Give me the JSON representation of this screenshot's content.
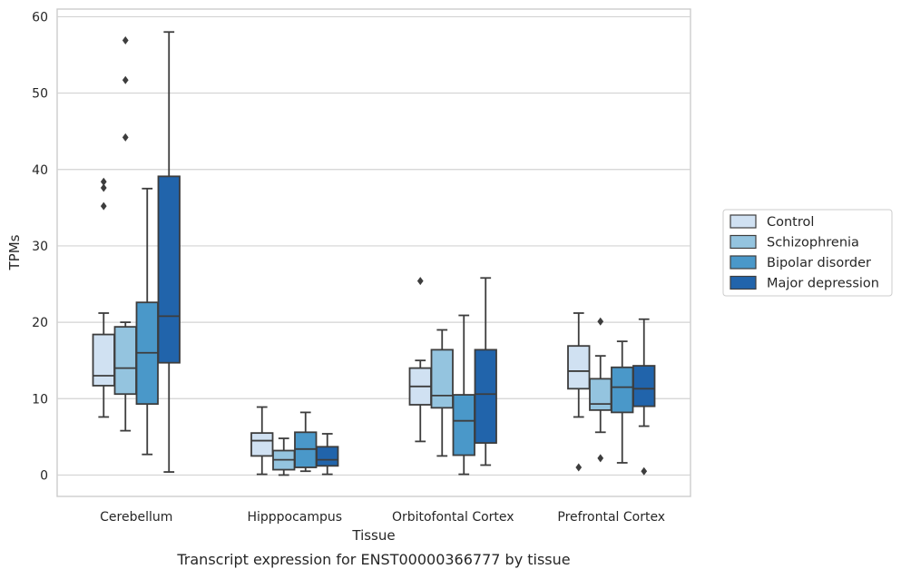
{
  "chart_data": {
    "type": "box",
    "title": "",
    "caption": "Transcript expression for ENST00000366777 by tissue",
    "xlabel": "Tissue",
    "ylabel": "TPMs",
    "ylim": [
      -2.8,
      61
    ],
    "yticks": [
      0,
      10,
      20,
      30,
      40,
      50,
      60
    ],
    "grid": "horizontal",
    "legend_position": "right",
    "categories": [
      "Cerebellum",
      "Hipppocampus",
      "Orbitofontal Cortex",
      "Prefrontal Cortex"
    ],
    "series": [
      {
        "name": "Control",
        "color": "#d0e1f2",
        "boxes": [
          {
            "whislo": 7.6,
            "q1": 11.7,
            "med": 13.0,
            "q3": 18.4,
            "whishi": 21.2,
            "fliers": [
              35.2,
              37.6,
              38.4
            ]
          },
          {
            "whislo": 0.1,
            "q1": 2.5,
            "med": 4.5,
            "q3": 5.5,
            "whishi": 8.9,
            "fliers": []
          },
          {
            "whislo": 4.4,
            "q1": 9.2,
            "med": 11.6,
            "q3": 14.0,
            "whishi": 15.0,
            "fliers": [
              25.4
            ]
          },
          {
            "whislo": 7.6,
            "q1": 11.3,
            "med": 13.6,
            "q3": 16.9,
            "whishi": 21.2,
            "fliers": [
              1.0
            ]
          }
        ]
      },
      {
        "name": "Schizophrenia",
        "color": "#94c4df",
        "boxes": [
          {
            "whislo": 5.8,
            "q1": 10.6,
            "med": 14.0,
            "q3": 19.4,
            "whishi": 20.0,
            "fliers": [
              44.2,
              51.7,
              56.9
            ]
          },
          {
            "whislo": 0.0,
            "q1": 0.7,
            "med": 2.0,
            "q3": 3.2,
            "whishi": 4.8,
            "fliers": []
          },
          {
            "whislo": 2.5,
            "q1": 8.8,
            "med": 10.4,
            "q3": 16.4,
            "whishi": 19.0,
            "fliers": []
          },
          {
            "whislo": 5.6,
            "q1": 8.5,
            "med": 9.3,
            "q3": 12.6,
            "whishi": 15.6,
            "fliers": [
              2.2,
              20.1
            ]
          }
        ]
      },
      {
        "name": "Bipolar disorder",
        "color": "#4a98c9",
        "boxes": [
          {
            "whislo": 2.7,
            "q1": 9.3,
            "med": 16.0,
            "q3": 22.6,
            "whishi": 37.5,
            "fliers": []
          },
          {
            "whislo": 0.5,
            "q1": 1.0,
            "med": 3.4,
            "q3": 5.6,
            "whishi": 8.2,
            "fliers": []
          },
          {
            "whislo": 0.1,
            "q1": 2.6,
            "med": 7.1,
            "q3": 10.5,
            "whishi": 20.9,
            "fliers": []
          },
          {
            "whislo": 1.6,
            "q1": 8.2,
            "med": 11.5,
            "q3": 14.1,
            "whishi": 17.5,
            "fliers": []
          }
        ]
      },
      {
        "name": "Major depression",
        "color": "#2164ab",
        "boxes": [
          {
            "whislo": 0.4,
            "q1": 14.7,
            "med": 20.8,
            "q3": 39.1,
            "whishi": 58.0,
            "fliers": []
          },
          {
            "whislo": 0.1,
            "q1": 1.2,
            "med": 2.0,
            "q3": 3.7,
            "whishi": 5.4,
            "fliers": []
          },
          {
            "whislo": 1.3,
            "q1": 4.2,
            "med": 10.6,
            "q3": 16.4,
            "whishi": 25.8,
            "fliers": []
          },
          {
            "whislo": 6.4,
            "q1": 9.0,
            "med": 11.3,
            "q3": 14.3,
            "whishi": 20.4,
            "fliers": [
              0.5
            ]
          }
        ]
      }
    ]
  }
}
